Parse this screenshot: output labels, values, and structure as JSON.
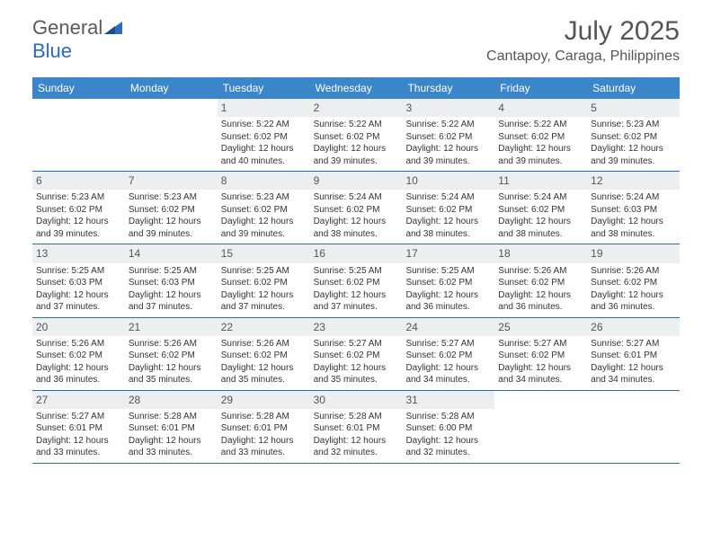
{
  "brand": {
    "name_part1": "General",
    "name_part2": "Blue"
  },
  "title": "July 2025",
  "location": "Cantapoy, Caraga, Philippines",
  "colors": {
    "header_bg": "#3a86c8",
    "header_text": "#ffffff",
    "daynum_bg": "#eceeef",
    "border": "#2a6db8",
    "text": "#333333",
    "title_text": "#555555",
    "brand_gray": "#5a5a5a",
    "brand_blue": "#2a6db8",
    "page_bg": "#ffffff"
  },
  "typography": {
    "title_fontsize": 30,
    "location_fontsize": 16,
    "dayheader_fontsize": 12,
    "daynum_fontsize": 12,
    "body_fontsize": 10,
    "logo_fontsize": 22
  },
  "day_headers": [
    "Sunday",
    "Monday",
    "Tuesday",
    "Wednesday",
    "Thursday",
    "Friday",
    "Saturday"
  ],
  "weeks": [
    [
      {
        "empty": true
      },
      {
        "empty": true
      },
      {
        "day": "1",
        "sunrise": "Sunrise: 5:22 AM",
        "sunset": "Sunset: 6:02 PM",
        "daylight1": "Daylight: 12 hours",
        "daylight2": "and 40 minutes."
      },
      {
        "day": "2",
        "sunrise": "Sunrise: 5:22 AM",
        "sunset": "Sunset: 6:02 PM",
        "daylight1": "Daylight: 12 hours",
        "daylight2": "and 39 minutes."
      },
      {
        "day": "3",
        "sunrise": "Sunrise: 5:22 AM",
        "sunset": "Sunset: 6:02 PM",
        "daylight1": "Daylight: 12 hours",
        "daylight2": "and 39 minutes."
      },
      {
        "day": "4",
        "sunrise": "Sunrise: 5:22 AM",
        "sunset": "Sunset: 6:02 PM",
        "daylight1": "Daylight: 12 hours",
        "daylight2": "and 39 minutes."
      },
      {
        "day": "5",
        "sunrise": "Sunrise: 5:23 AM",
        "sunset": "Sunset: 6:02 PM",
        "daylight1": "Daylight: 12 hours",
        "daylight2": "and 39 minutes."
      }
    ],
    [
      {
        "day": "6",
        "sunrise": "Sunrise: 5:23 AM",
        "sunset": "Sunset: 6:02 PM",
        "daylight1": "Daylight: 12 hours",
        "daylight2": "and 39 minutes."
      },
      {
        "day": "7",
        "sunrise": "Sunrise: 5:23 AM",
        "sunset": "Sunset: 6:02 PM",
        "daylight1": "Daylight: 12 hours",
        "daylight2": "and 39 minutes."
      },
      {
        "day": "8",
        "sunrise": "Sunrise: 5:23 AM",
        "sunset": "Sunset: 6:02 PM",
        "daylight1": "Daylight: 12 hours",
        "daylight2": "and 39 minutes."
      },
      {
        "day": "9",
        "sunrise": "Sunrise: 5:24 AM",
        "sunset": "Sunset: 6:02 PM",
        "daylight1": "Daylight: 12 hours",
        "daylight2": "and 38 minutes."
      },
      {
        "day": "10",
        "sunrise": "Sunrise: 5:24 AM",
        "sunset": "Sunset: 6:02 PM",
        "daylight1": "Daylight: 12 hours",
        "daylight2": "and 38 minutes."
      },
      {
        "day": "11",
        "sunrise": "Sunrise: 5:24 AM",
        "sunset": "Sunset: 6:02 PM",
        "daylight1": "Daylight: 12 hours",
        "daylight2": "and 38 minutes."
      },
      {
        "day": "12",
        "sunrise": "Sunrise: 5:24 AM",
        "sunset": "Sunset: 6:03 PM",
        "daylight1": "Daylight: 12 hours",
        "daylight2": "and 38 minutes."
      }
    ],
    [
      {
        "day": "13",
        "sunrise": "Sunrise: 5:25 AM",
        "sunset": "Sunset: 6:03 PM",
        "daylight1": "Daylight: 12 hours",
        "daylight2": "and 37 minutes."
      },
      {
        "day": "14",
        "sunrise": "Sunrise: 5:25 AM",
        "sunset": "Sunset: 6:03 PM",
        "daylight1": "Daylight: 12 hours",
        "daylight2": "and 37 minutes."
      },
      {
        "day": "15",
        "sunrise": "Sunrise: 5:25 AM",
        "sunset": "Sunset: 6:02 PM",
        "daylight1": "Daylight: 12 hours",
        "daylight2": "and 37 minutes."
      },
      {
        "day": "16",
        "sunrise": "Sunrise: 5:25 AM",
        "sunset": "Sunset: 6:02 PM",
        "daylight1": "Daylight: 12 hours",
        "daylight2": "and 37 minutes."
      },
      {
        "day": "17",
        "sunrise": "Sunrise: 5:25 AM",
        "sunset": "Sunset: 6:02 PM",
        "daylight1": "Daylight: 12 hours",
        "daylight2": "and 36 minutes."
      },
      {
        "day": "18",
        "sunrise": "Sunrise: 5:26 AM",
        "sunset": "Sunset: 6:02 PM",
        "daylight1": "Daylight: 12 hours",
        "daylight2": "and 36 minutes."
      },
      {
        "day": "19",
        "sunrise": "Sunrise: 5:26 AM",
        "sunset": "Sunset: 6:02 PM",
        "daylight1": "Daylight: 12 hours",
        "daylight2": "and 36 minutes."
      }
    ],
    [
      {
        "day": "20",
        "sunrise": "Sunrise: 5:26 AM",
        "sunset": "Sunset: 6:02 PM",
        "daylight1": "Daylight: 12 hours",
        "daylight2": "and 36 minutes."
      },
      {
        "day": "21",
        "sunrise": "Sunrise: 5:26 AM",
        "sunset": "Sunset: 6:02 PM",
        "daylight1": "Daylight: 12 hours",
        "daylight2": "and 35 minutes."
      },
      {
        "day": "22",
        "sunrise": "Sunrise: 5:26 AM",
        "sunset": "Sunset: 6:02 PM",
        "daylight1": "Daylight: 12 hours",
        "daylight2": "and 35 minutes."
      },
      {
        "day": "23",
        "sunrise": "Sunrise: 5:27 AM",
        "sunset": "Sunset: 6:02 PM",
        "daylight1": "Daylight: 12 hours",
        "daylight2": "and 35 minutes."
      },
      {
        "day": "24",
        "sunrise": "Sunrise: 5:27 AM",
        "sunset": "Sunset: 6:02 PM",
        "daylight1": "Daylight: 12 hours",
        "daylight2": "and 34 minutes."
      },
      {
        "day": "25",
        "sunrise": "Sunrise: 5:27 AM",
        "sunset": "Sunset: 6:02 PM",
        "daylight1": "Daylight: 12 hours",
        "daylight2": "and 34 minutes."
      },
      {
        "day": "26",
        "sunrise": "Sunrise: 5:27 AM",
        "sunset": "Sunset: 6:01 PM",
        "daylight1": "Daylight: 12 hours",
        "daylight2": "and 34 minutes."
      }
    ],
    [
      {
        "day": "27",
        "sunrise": "Sunrise: 5:27 AM",
        "sunset": "Sunset: 6:01 PM",
        "daylight1": "Daylight: 12 hours",
        "daylight2": "and 33 minutes."
      },
      {
        "day": "28",
        "sunrise": "Sunrise: 5:28 AM",
        "sunset": "Sunset: 6:01 PM",
        "daylight1": "Daylight: 12 hours",
        "daylight2": "and 33 minutes."
      },
      {
        "day": "29",
        "sunrise": "Sunrise: 5:28 AM",
        "sunset": "Sunset: 6:01 PM",
        "daylight1": "Daylight: 12 hours",
        "daylight2": "and 33 minutes."
      },
      {
        "day": "30",
        "sunrise": "Sunrise: 5:28 AM",
        "sunset": "Sunset: 6:01 PM",
        "daylight1": "Daylight: 12 hours",
        "daylight2": "and 32 minutes."
      },
      {
        "day": "31",
        "sunrise": "Sunrise: 5:28 AM",
        "sunset": "Sunset: 6:00 PM",
        "daylight1": "Daylight: 12 hours",
        "daylight2": "and 32 minutes."
      },
      {
        "empty": true
      },
      {
        "empty": true
      }
    ]
  ]
}
